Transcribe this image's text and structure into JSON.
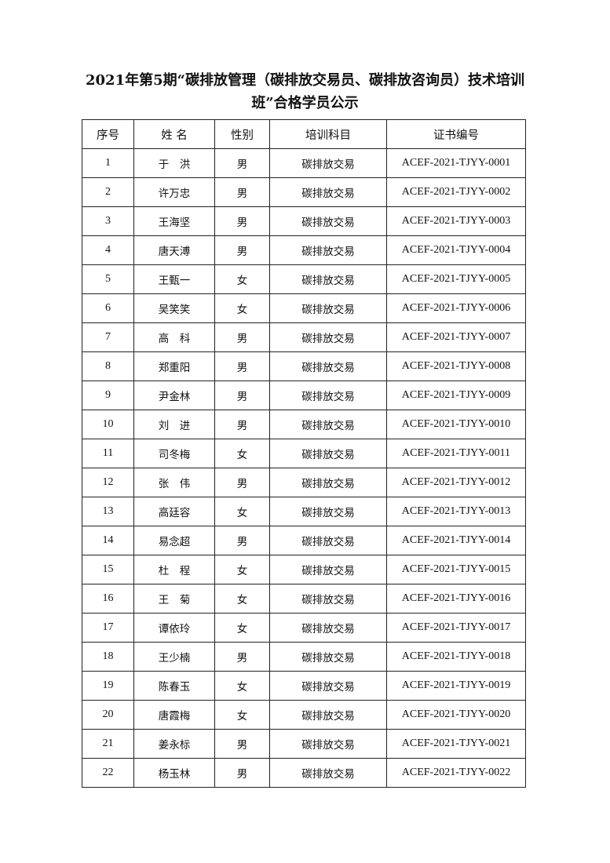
{
  "title": "2021年第5期“碳排放管理（碳排放交易员、碳排放咨询员）技术培训班”合格学员公示",
  "table": {
    "headers": [
      "序号",
      "姓 名",
      "性别",
      "培训科目",
      "证书编号"
    ],
    "rows": [
      [
        "1",
        "于　洪",
        "男",
        "碳排放交易",
        "ACEF-2021-TJYY-0001"
      ],
      [
        "2",
        "许万忠",
        "男",
        "碳排放交易",
        "ACEF-2021-TJYY-0002"
      ],
      [
        "3",
        "王海坚",
        "男",
        "碳排放交易",
        "ACEF-2021-TJYY-0003"
      ],
      [
        "4",
        "唐天溥",
        "男",
        "碳排放交易",
        "ACEF-2021-TJYY-0004"
      ],
      [
        "5",
        "王甄一",
        "女",
        "碳排放交易",
        "ACEF-2021-TJYY-0005"
      ],
      [
        "6",
        "吴笑笑",
        "女",
        "碳排放交易",
        "ACEF-2021-TJYY-0006"
      ],
      [
        "7",
        "高　科",
        "男",
        "碳排放交易",
        "ACEF-2021-TJYY-0007"
      ],
      [
        "8",
        "郑重阳",
        "男",
        "碳排放交易",
        "ACEF-2021-TJYY-0008"
      ],
      [
        "9",
        "尹金林",
        "男",
        "碳排放交易",
        "ACEF-2021-TJYY-0009"
      ],
      [
        "10",
        "刘　进",
        "男",
        "碳排放交易",
        "ACEF-2021-TJYY-0010"
      ],
      [
        "11",
        "司冬梅",
        "女",
        "碳排放交易",
        "ACEF-2021-TJYY-0011"
      ],
      [
        "12",
        "张　伟",
        "男",
        "碳排放交易",
        "ACEF-2021-TJYY-0012"
      ],
      [
        "13",
        "高廷容",
        "女",
        "碳排放交易",
        "ACEF-2021-TJYY-0013"
      ],
      [
        "14",
        "易念超",
        "男",
        "碳排放交易",
        "ACEF-2021-TJYY-0014"
      ],
      [
        "15",
        "杜　程",
        "女",
        "碳排放交易",
        "ACEF-2021-TJYY-0015"
      ],
      [
        "16",
        "王　菊",
        "女",
        "碳排放交易",
        "ACEF-2021-TJYY-0016"
      ],
      [
        "17",
        "谭依玲",
        "女",
        "碳排放交易",
        "ACEF-2021-TJYY-0017"
      ],
      [
        "18",
        "王少楠",
        "男",
        "碳排放交易",
        "ACEF-2021-TJYY-0018"
      ],
      [
        "19",
        "陈春玉",
        "女",
        "碳排放交易",
        "ACEF-2021-TJYY-0019"
      ],
      [
        "20",
        "唐霞梅",
        "女",
        "碳排放交易",
        "ACEF-2021-TJYY-0020"
      ],
      [
        "21",
        "姜永标",
        "男",
        "碳排放交易",
        "ACEF-2021-TJYY-0021"
      ],
      [
        "22",
        "杨玉林",
        "男",
        "碳排放交易",
        "ACEF-2021-TJYY-0022"
      ]
    ]
  }
}
